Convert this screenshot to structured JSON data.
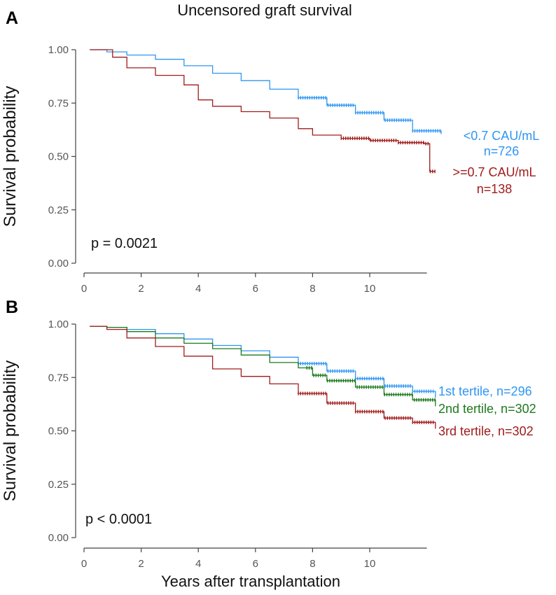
{
  "figure": {
    "title": "Uncensored graft survival",
    "xlabel": "Years after transplantation"
  },
  "chart_data": [
    {
      "panel": "A",
      "type": "line",
      "ylabel": "Survival probability",
      "xlim": [
        0,
        12.5
      ],
      "ylim": [
        0,
        1
      ],
      "xticks": [
        "0",
        "2",
        "4",
        "6",
        "8",
        "10"
      ],
      "yticks": [
        "0.00",
        "0.25",
        "0.50",
        "0.75",
        "1.00"
      ],
      "annotation": "p = 0.0021",
      "series": [
        {
          "name": "<0.7 CAU/mL",
          "n_label": "n=726",
          "color": "#2f96f3",
          "x": [
            0.2,
            0.8,
            1.5,
            2.5,
            3.5,
            4.5,
            5.5,
            6.5,
            7.5,
            8.5,
            9.5,
            10.5,
            11.5,
            12.5
          ],
          "y": [
            1.0,
            0.99,
            0.975,
            0.955,
            0.925,
            0.89,
            0.855,
            0.815,
            0.775,
            0.74,
            0.705,
            0.67,
            0.62,
            0.605
          ],
          "censor_from": 7.5
        },
        {
          "name": ">=0.7 CAU/mL",
          "n_label": "n=138",
          "color": "#a01c1c",
          "x": [
            0.2,
            0.8,
            1.0,
            1.5,
            2.5,
            3.5,
            4.0,
            4.5,
            5.5,
            6.5,
            7.5,
            8.0,
            9.0,
            10.0,
            11.0,
            11.9,
            12.1,
            12.3
          ],
          "y": [
            1.0,
            1.0,
            0.965,
            0.915,
            0.88,
            0.835,
            0.765,
            0.735,
            0.71,
            0.68,
            0.63,
            0.6,
            0.585,
            0.575,
            0.565,
            0.56,
            0.43,
            0.43
          ],
          "censor_from": 9.0
        }
      ]
    },
    {
      "panel": "B",
      "type": "line",
      "ylabel": "Survival probability",
      "xlim": [
        0,
        12.5
      ],
      "ylim": [
        0,
        1
      ],
      "xticks": [
        "0",
        "2",
        "4",
        "6",
        "8",
        "10"
      ],
      "yticks": [
        "0.00",
        "0.25",
        "0.50",
        "0.75",
        "1.00"
      ],
      "annotation": "p < 0.0001",
      "series": [
        {
          "name": "1st tertile, n=296",
          "color": "#2f96f3",
          "x": [
            0.2,
            0.8,
            1.5,
            2.5,
            3.5,
            4.5,
            5.5,
            6.5,
            7.5,
            8.5,
            9.5,
            10.5,
            11.5,
            12.3
          ],
          "y": [
            0.99,
            0.985,
            0.975,
            0.955,
            0.93,
            0.9,
            0.875,
            0.845,
            0.815,
            0.78,
            0.745,
            0.71,
            0.685,
            0.655
          ],
          "censor_from": 7.5
        },
        {
          "name": "2nd tertile, n=302",
          "color": "#1d7a1d",
          "x": [
            0.2,
            0.8,
            1.5,
            2.5,
            3.5,
            4.5,
            5.5,
            6.5,
            7.5,
            8.0,
            8.5,
            9.5,
            10.5,
            11.5,
            12.3
          ],
          "y": [
            0.99,
            0.985,
            0.965,
            0.935,
            0.91,
            0.885,
            0.855,
            0.82,
            0.795,
            0.76,
            0.735,
            0.705,
            0.67,
            0.645,
            0.615
          ],
          "censor_from": 7.8
        },
        {
          "name": "3rd tertile, n=302",
          "color": "#a01c1c",
          "x": [
            0.2,
            0.8,
            1.5,
            2.5,
            3.5,
            4.5,
            5.5,
            6.5,
            7.5,
            8.5,
            9.5,
            10.5,
            11.5,
            12.3
          ],
          "y": [
            0.99,
            0.975,
            0.935,
            0.895,
            0.85,
            0.79,
            0.755,
            0.72,
            0.675,
            0.63,
            0.59,
            0.56,
            0.54,
            0.51
          ],
          "censor_from": 7.5
        }
      ]
    }
  ]
}
